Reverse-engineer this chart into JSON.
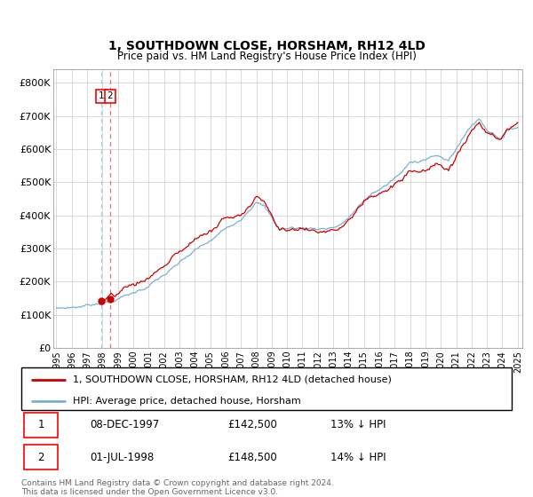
{
  "title": "1, SOUTHDOWN CLOSE, HORSHAM, RH12 4LD",
  "subtitle": "Price paid vs. HM Land Registry's House Price Index (HPI)",
  "legend_line1": "1, SOUTHDOWN CLOSE, HORSHAM, RH12 4LD (detached house)",
  "legend_line2": "HPI: Average price, detached house, Horsham",
  "transaction1_label": "1",
  "transaction1_date": "08-DEC-1997",
  "transaction1_price": "£142,500",
  "transaction1_hpi": "13% ↓ HPI",
  "transaction2_label": "2",
  "transaction2_date": "01-JUL-1998",
  "transaction2_price": "£148,500",
  "transaction2_hpi": "14% ↓ HPI",
  "footnote1": "Contains HM Land Registry data © Crown copyright and database right 2024.",
  "footnote2": "This data is licensed under the Open Government Licence v3.0.",
  "red_line_color": "#cc0000",
  "blue_line_color": "#7ab0d4",
  "dashed_red_color": "#e87070",
  "dashed_blue_color": "#aaccee",
  "dot_color": "#cc0000",
  "grid_color": "#cccccc",
  "background_color": "#ffffff",
  "ylim": [
    0,
    840000
  ],
  "yticks": [
    0,
    100000,
    200000,
    300000,
    400000,
    500000,
    600000,
    700000,
    800000
  ],
  "ytick_labels": [
    "£0",
    "£100K",
    "£200K",
    "£300K",
    "£400K",
    "£500K",
    "£600K",
    "£700K",
    "£800K"
  ],
  "xticks": [
    1995,
    1996,
    1997,
    1998,
    1999,
    2000,
    2001,
    2002,
    2003,
    2004,
    2005,
    2006,
    2007,
    2008,
    2009,
    2010,
    2011,
    2012,
    2013,
    2014,
    2015,
    2016,
    2017,
    2018,
    2019,
    2020,
    2021,
    2022,
    2023,
    2024,
    2025
  ],
  "t1_x": 1997.92,
  "t2_x": 1998.5,
  "t1_y": 142500,
  "t2_y": 148500
}
